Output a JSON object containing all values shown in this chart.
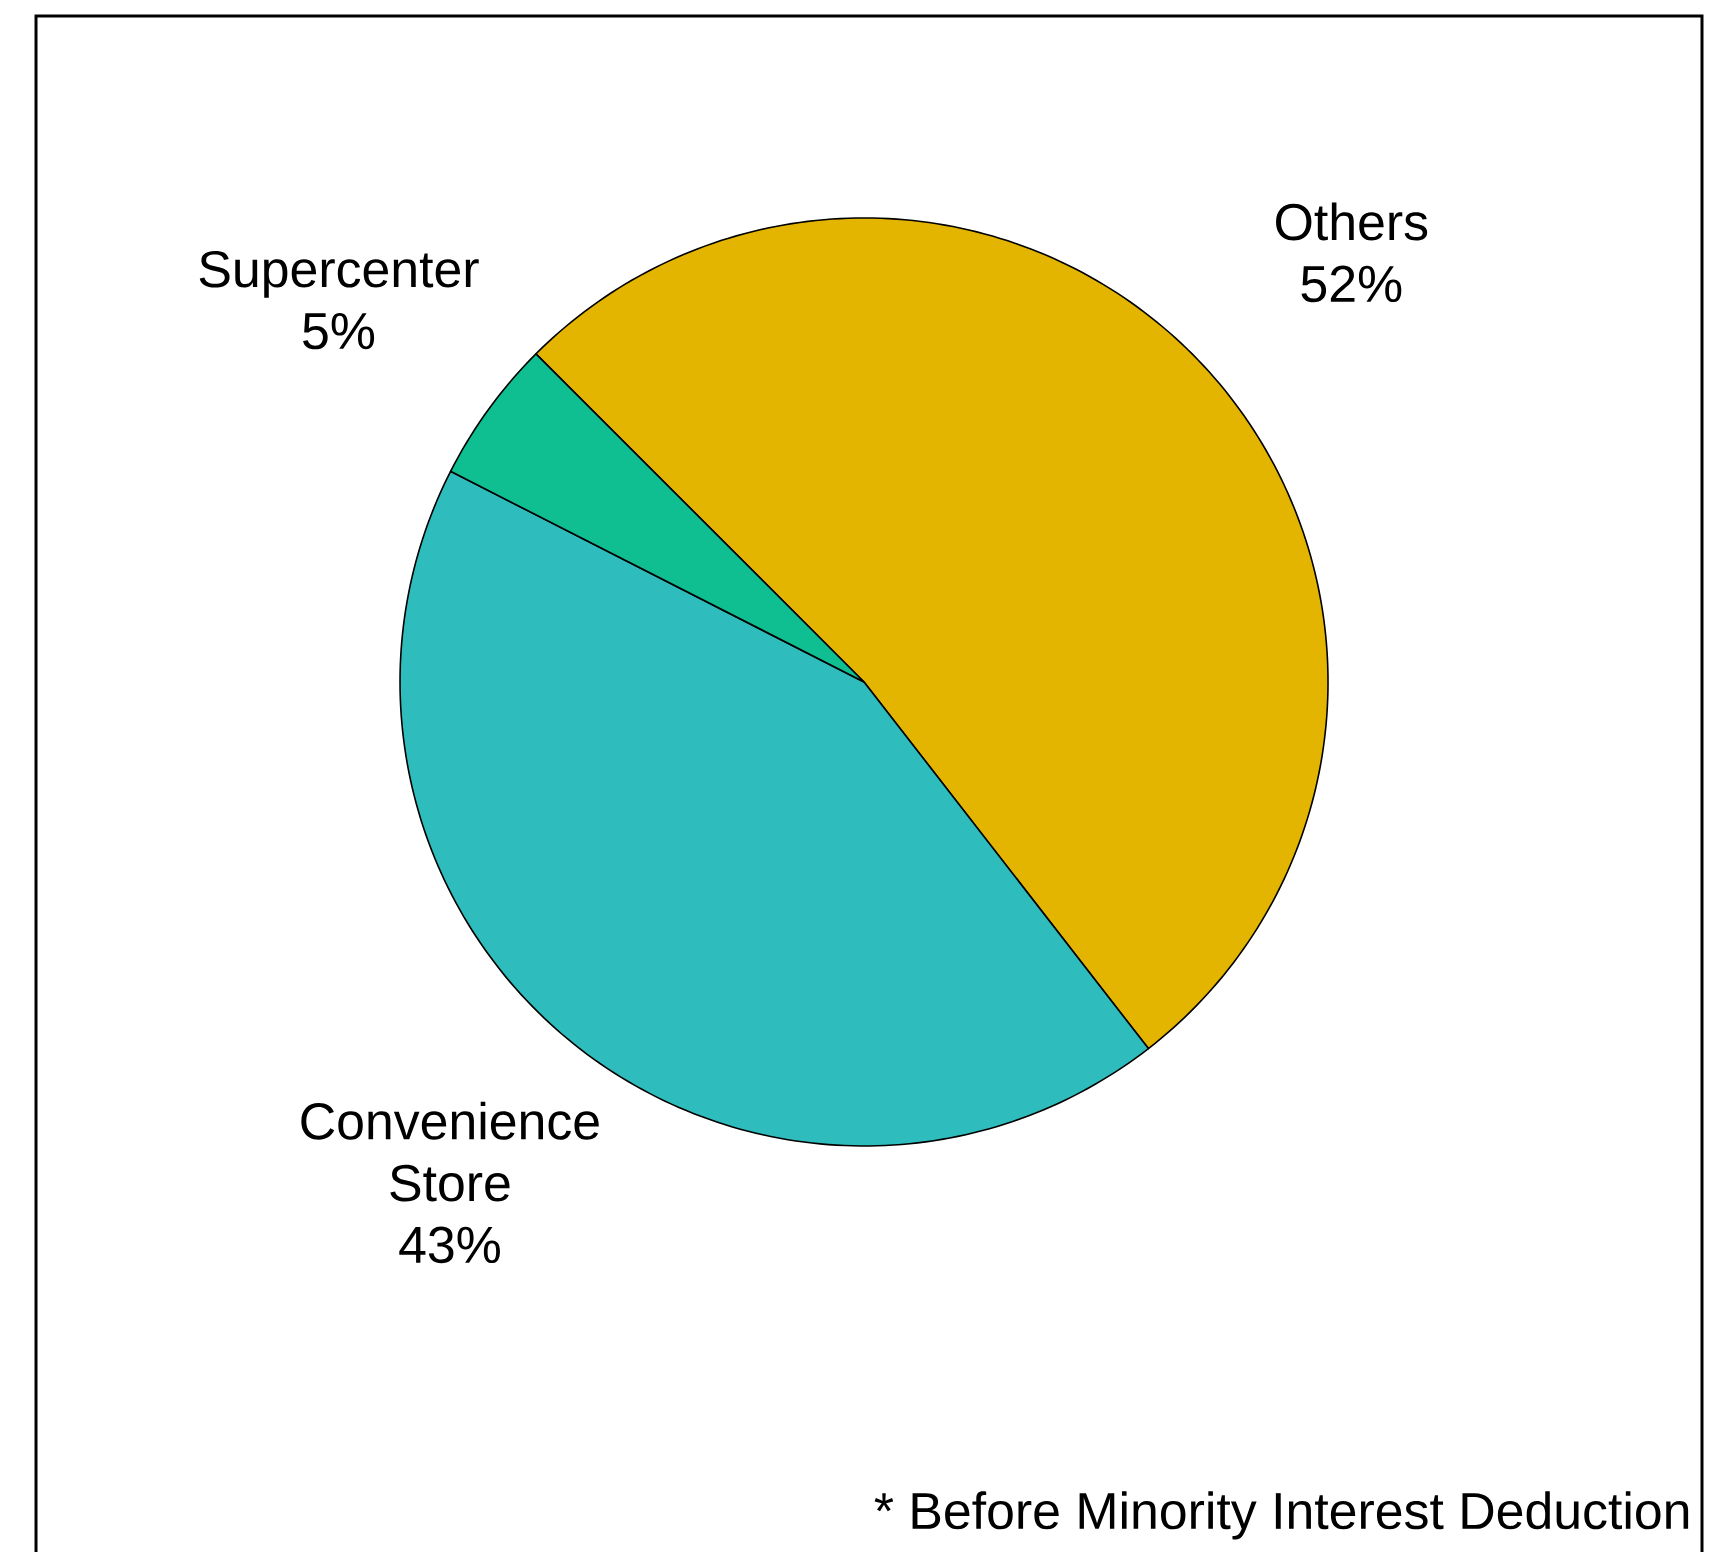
{
  "chart_data": {
    "type": "pie",
    "categories": [
      "Others",
      "Convenience Store",
      "Supercenter"
    ],
    "values": [
      52,
      43,
      5
    ],
    "value_labels": [
      "52%",
      "43%",
      "5%"
    ],
    "colors": [
      "#e3b400",
      "#2fbcbc",
      "#0fbf92"
    ],
    "annotations": [
      "* Before Minority Interest Deduction"
    ]
  }
}
